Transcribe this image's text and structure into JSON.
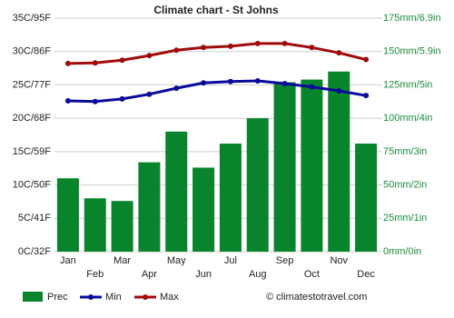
{
  "chart_data": {
    "type": "bar",
    "title": "Climate chart - St Johns",
    "credit": "© climatestotravel.com",
    "categories": [
      "Jan",
      "Feb",
      "Mar",
      "Apr",
      "May",
      "Jun",
      "Jul",
      "Aug",
      "Sep",
      "Oct",
      "Nov",
      "Dec"
    ],
    "series": [
      {
        "name": "Prec",
        "type": "bar",
        "axis": "y2",
        "color": "#08842c",
        "values": [
          55,
          40,
          38,
          67,
          90,
          63,
          81,
          100,
          127,
          129,
          135,
          81
        ]
      },
      {
        "name": "Min",
        "type": "line",
        "color": "#0a0a9c",
        "values": [
          22.6,
          22.5,
          22.9,
          23.6,
          24.5,
          25.3,
          25.5,
          25.6,
          25.2,
          24.7,
          24.1,
          23.4
        ]
      },
      {
        "name": "Max",
        "type": "line",
        "color": "#a00c0c",
        "values": [
          28.2,
          28.3,
          28.7,
          29.4,
          30.2,
          30.6,
          30.8,
          31.2,
          31.2,
          30.6,
          29.8,
          28.8
        ]
      }
    ],
    "ylim": [
      0,
      35
    ],
    "yticks": [
      {
        "value": 0,
        "label": "0C/32F"
      },
      {
        "value": 5,
        "label": "5C/41F"
      },
      {
        "value": 10,
        "label": "10C/50F"
      },
      {
        "value": 15,
        "label": "15C/59F"
      },
      {
        "value": 20,
        "label": "20C/68F"
      },
      {
        "value": 25,
        "label": "25C/77F"
      },
      {
        "value": 30,
        "label": "30C/86F"
      },
      {
        "value": 35,
        "label": "35C/95F"
      }
    ],
    "y2lim": [
      0,
      175
    ],
    "y2ticks": [
      {
        "value": 0,
        "label": "0mm/0in"
      },
      {
        "value": 25,
        "label": "25mm/1in"
      },
      {
        "value": 50,
        "label": "50mm/2in"
      },
      {
        "value": 75,
        "label": "75mm/3in"
      },
      {
        "value": 100,
        "label": "100mm/4in"
      },
      {
        "value": 125,
        "label": "125mm/5in"
      },
      {
        "value": 150,
        "label": "150mm/5.9in"
      },
      {
        "value": 175,
        "label": "175mm/6.9in"
      }
    ],
    "grid": true
  }
}
